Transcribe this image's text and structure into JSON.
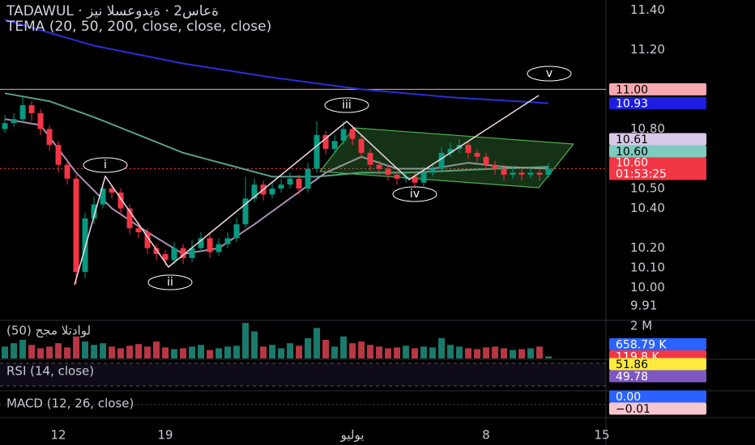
{
  "header": {
    "title": "TADAWUL · ةعاس2 · ةيدوعسلا نيز",
    "indicator": "TEMA (20, 50, 200, close, close, close)"
  },
  "chart_data": {
    "type": "candlestick",
    "colors": {
      "up": "#089981",
      "down": "#f23645"
    },
    "open": [
      10.8,
      10.83,
      10.85,
      10.92,
      10.88,
      10.8,
      10.72,
      10.62,
      10.55,
      10.08,
      10.35,
      10.42,
      10.5,
      10.48,
      10.4,
      10.3,
      10.28,
      10.2,
      10.17,
      10.14,
      10.2,
      10.15,
      10.2,
      10.25,
      10.18,
      10.22,
      10.25,
      10.32,
      10.45,
      10.52,
      10.47,
      10.5,
      10.52,
      10.55,
      10.5,
      10.6,
      10.77,
      10.7,
      10.74,
      10.8,
      10.75,
      10.68,
      10.62,
      10.6,
      10.57,
      10.55,
      10.56,
      10.53,
      10.58,
      10.6,
      10.68,
      10.7,
      10.72,
      10.68,
      10.66,
      10.62,
      10.6,
      10.57,
      10.58,
      10.57,
      10.58,
      10.57
    ],
    "high": [
      10.87,
      10.88,
      10.97,
      10.94,
      10.9,
      10.82,
      10.74,
      10.65,
      10.57,
      10.38,
      10.46,
      10.53,
      10.52,
      10.5,
      10.42,
      10.33,
      10.3,
      10.22,
      10.19,
      10.23,
      10.22,
      10.24,
      10.28,
      10.27,
      10.25,
      10.28,
      10.35,
      10.56,
      10.55,
      10.54,
      10.53,
      10.55,
      10.58,
      10.57,
      10.63,
      10.84,
      10.79,
      10.77,
      10.84,
      10.82,
      10.77,
      10.7,
      10.64,
      10.62,
      10.59,
      10.58,
      10.58,
      10.61,
      10.63,
      10.71,
      10.73,
      10.75,
      10.74,
      10.7,
      10.68,
      10.64,
      10.62,
      10.61,
      10.6,
      10.61,
      10.6,
      10.63
    ],
    "low": [
      10.78,
      10.81,
      10.83,
      10.84,
      10.77,
      10.69,
      10.58,
      10.52,
      10.02,
      10.05,
      10.32,
      10.4,
      10.45,
      10.37,
      10.27,
      10.25,
      10.17,
      10.14,
      10.11,
      10.12,
      10.12,
      10.13,
      10.18,
      10.15,
      10.16,
      10.2,
      10.23,
      10.3,
      10.43,
      10.44,
      10.45,
      10.48,
      10.5,
      10.47,
      10.48,
      10.58,
      10.67,
      10.68,
      10.72,
      10.72,
      10.65,
      10.59,
      10.57,
      10.54,
      10.52,
      10.53,
      10.5,
      10.51,
      10.56,
      10.58,
      10.66,
      10.68,
      10.65,
      10.63,
      10.59,
      10.57,
      10.54,
      10.55,
      10.54,
      10.55,
      10.54,
      10.55
    ],
    "close": [
      10.83,
      10.85,
      10.92,
      10.88,
      10.8,
      10.72,
      10.62,
      10.55,
      10.08,
      10.35,
      10.42,
      10.5,
      10.48,
      10.4,
      10.3,
      10.28,
      10.2,
      10.17,
      10.14,
      10.2,
      10.15,
      10.2,
      10.25,
      10.18,
      10.22,
      10.25,
      10.32,
      10.45,
      10.52,
      10.47,
      10.5,
      10.52,
      10.55,
      10.5,
      10.6,
      10.77,
      10.7,
      10.74,
      10.8,
      10.75,
      10.68,
      10.62,
      10.6,
      10.57,
      10.55,
      10.56,
      10.53,
      10.58,
      10.6,
      10.68,
      10.7,
      10.72,
      10.68,
      10.66,
      10.62,
      10.6,
      10.57,
      10.58,
      10.57,
      10.58,
      10.57,
      10.6
    ],
    "ylim": [
      9.84,
      11.45
    ],
    "yticks": [
      {
        "value": 11.4,
        "label": "11.40"
      },
      {
        "value": 11.2,
        "label": "11.20"
      },
      {
        "value": 10.8,
        "label": "10.80"
      },
      {
        "value": 10.5,
        "label": "10.50"
      },
      {
        "value": 10.4,
        "label": "10.40"
      },
      {
        "value": 10.2,
        "label": "10.20"
      },
      {
        "value": 10.1,
        "label": "10.10"
      },
      {
        "value": 10,
        "label": "10.00"
      },
      9.91
    ],
    "xlim": [
      -0.55,
      67.45
    ],
    "xticks": [
      {
        "value": 6,
        "label": "12"
      },
      {
        "value": 18,
        "label": "19"
      },
      {
        "value": 39,
        "label": "يوليو"
      },
      {
        "value": 54,
        "label": "8"
      },
      {
        "value": 67,
        "label": "15"
      }
    ],
    "lines": [
      {
        "color": "#2b2fd6",
        "x": [
          0,
          10,
          20,
          30,
          40,
          50,
          61
        ],
        "values": [
          11.35,
          11.22,
          11.13,
          11.06,
          11.0,
          10.96,
          10.93
        ]
      },
      {
        "color": "#5a9e86",
        "x": [
          0,
          5,
          10,
          15,
          20,
          25,
          30,
          35,
          40,
          45,
          50,
          55,
          61
        ],
        "values": [
          10.98,
          10.94,
          10.86,
          10.77,
          10.68,
          10.62,
          10.56,
          10.56,
          10.58,
          10.58,
          10.59,
          10.6,
          10.61
        ]
      },
      {
        "color": "#a98fb4",
        "x": [
          0,
          4,
          8,
          12,
          16,
          20,
          24,
          28,
          32,
          36,
          40,
          44,
          48,
          52,
          56,
          61
        ],
        "values": [
          10.85,
          10.82,
          10.58,
          10.4,
          10.28,
          10.17,
          10.2,
          10.32,
          10.45,
          10.58,
          10.66,
          10.6,
          10.6,
          10.63,
          10.61,
          10.6
        ]
      }
    ],
    "price_labels": [
      {
        "value": 11,
        "label": "11.00",
        "color": "#f7a8b0",
        "text_color": "#000000"
      },
      {
        "value": 10.93,
        "label": "10.93",
        "color": "#1d1de0",
        "text_color": "#ffffff"
      },
      {
        "value": 10.61,
        "label": "10.61",
        "color": "#d7c8e8",
        "text_color": "#000000"
      },
      {
        "value": 10.6,
        "label": "10.60",
        "color": "#7fcbbd",
        "text_color": "#000000"
      },
      {
        "value": 10.6,
        "label": "10.60",
        "countdown": "01:53:25",
        "color": "#f23645",
        "text_color": "#ffffff"
      }
    ],
    "waves": [
      "i",
      "ii",
      "iii",
      "iv",
      "v"
    ],
    "volume": {
      "label": "لوادتلا مجح (50)",
      "colors": {
        "up": "#1f8f7e",
        "down": "#d9414e"
      },
      "ylim": [
        0,
        2200000
      ],
      "yticks": [
        {
          "value": 2000000,
          "label": "2 M"
        }
      ],
      "values": [
        700000,
        900000,
        1100000,
        800000,
        600000,
        700000,
        900000,
        650000,
        1300000,
        1000000,
        800000,
        900000,
        700000,
        600000,
        750000,
        850000,
        700000,
        1000000,
        650000,
        550000,
        600000,
        700000,
        800000,
        500000,
        600000,
        700000,
        750000,
        2100000,
        1600000,
        700000,
        800000,
        600000,
        900000,
        750000,
        1200000,
        1800000,
        1100000,
        700000,
        1300000,
        900000,
        1000000,
        800000,
        700000,
        600000,
        650000,
        750000,
        600000,
        700000,
        650000,
        1200000,
        800000,
        700000,
        600000,
        550000,
        650000,
        700000,
        600000,
        500000,
        550000,
        600000,
        700000,
        119800
      ],
      "badges": [
        {
          "value": 658790,
          "label": "658.79 K",
          "color": "#2962ff",
          "text_color": "#ffffff"
        },
        {
          "value": 119800,
          "label": "119.8 K",
          "color": "#f23645",
          "text_color": "#ffffff"
        }
      ]
    },
    "rsi": {
      "label": "RSI (14, close)",
      "badges": [
        {
          "value": 51.86,
          "color": "#ffeb3b",
          "text_color": "#000000"
        },
        {
          "value": 49.78,
          "color": "#7e57c2",
          "text_color": "#ffffff"
        }
      ]
    },
    "macd": {
      "label": "MACD (12, 26, close)",
      "badges": [
        {
          "value": 0,
          "label": "0.00",
          "color": "#2962ff",
          "text_color": "#ffffff"
        },
        {
          "value": -0.01,
          "label": "−0.01",
          "color": "#f8c6cf",
          "text_color": "#000000"
        }
      ]
    }
  }
}
